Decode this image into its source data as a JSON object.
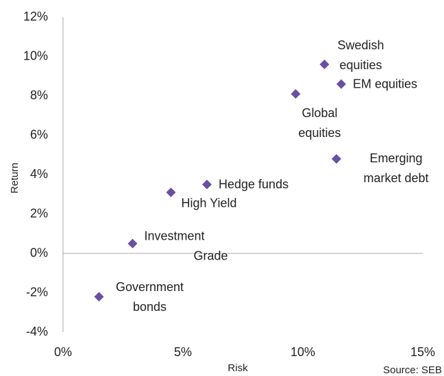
{
  "chart_data": {
    "type": "scatter",
    "x_label": "Risk",
    "y_label": "Return",
    "source": "Source: SEB",
    "labels": [
      [
        "Government",
        "bonds"
      ],
      [
        "Investment",
        "Grade"
      ],
      [
        "High Yield"
      ],
      [
        "Hedge funds"
      ],
      [
        "Global",
        "equities"
      ],
      [
        "Emerging",
        "market debt"
      ],
      [
        "Swedish",
        "equities"
      ],
      [
        "EM equities"
      ]
    ],
    "x": [
      1.5,
      2.9,
      4.5,
      6.0,
      9.7,
      11.4,
      10.9,
      11.6
    ],
    "values": [
      -2.2,
      0.5,
      3.1,
      3.5,
      8.1,
      4.8,
      9.6,
      8.6
    ],
    "color": "#6b4fa3",
    "xlim": [
      0,
      15
    ],
    "xticks": [
      {
        "value": 0,
        "label": "0%"
      },
      {
        "value": 5,
        "label": "5%"
      },
      {
        "value": 10,
        "label": "10%"
      },
      {
        "value": 15,
        "label": "15%"
      }
    ],
    "ylim": [
      -4,
      12
    ],
    "yticks": [
      {
        "value": -4,
        "label": "-4%"
      },
      {
        "value": -2,
        "label": "-2%"
      },
      {
        "value": 0,
        "label": "0%"
      },
      {
        "value": 2,
        "label": "2%"
      },
      {
        "value": 4,
        "label": "4%"
      },
      {
        "value": 6,
        "label": "6%"
      },
      {
        "value": 8,
        "label": "8%"
      },
      {
        "value": 10,
        "label": "10%"
      },
      {
        "value": 12,
        "label": "12%"
      }
    ],
    "grid": false
  }
}
